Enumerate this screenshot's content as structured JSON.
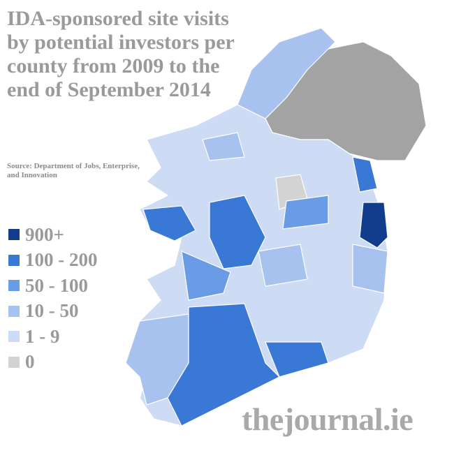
{
  "title": "IDA-sponsored site visits by potential investors per county from 2009 to the end of September 2014",
  "source": "Source: Department of Jobs, Enterprise, and Innovation",
  "legend": [
    {
      "label": "900+",
      "color": "#123d8c"
    },
    {
      "label": "100 - 200",
      "color": "#3a78d6"
    },
    {
      "label": "50 - 100",
      "color": "#6a9ce6"
    },
    {
      "label": "10 - 50",
      "color": "#a8c2f0"
    },
    {
      "label": "1 - 9",
      "color": "#cddbf5"
    },
    {
      "label": "0",
      "color": "#d3d3d3"
    }
  ],
  "logo": "thejournal.ie"
}
